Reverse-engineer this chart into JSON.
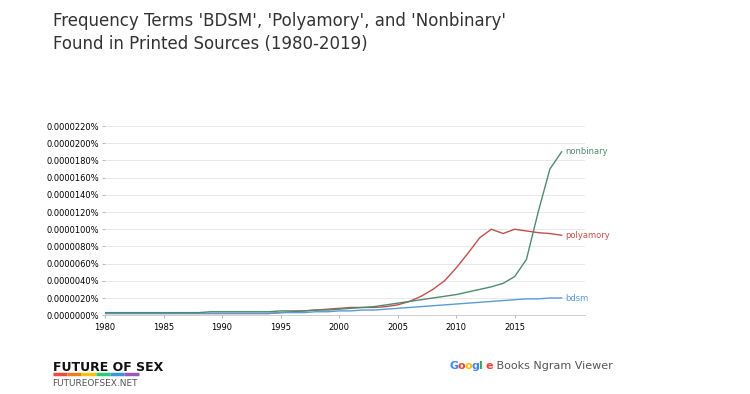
{
  "title": "Frequency Terms 'BDSM', 'Polyamory', and 'Nonbinary'\nFound in Printed Sources (1980-2019)",
  "years": [
    1980,
    1981,
    1982,
    1983,
    1984,
    1985,
    1986,
    1987,
    1988,
    1989,
    1990,
    1991,
    1992,
    1993,
    1994,
    1995,
    1996,
    1997,
    1998,
    1999,
    2000,
    2001,
    2002,
    2003,
    2004,
    2005,
    2006,
    2007,
    2008,
    2009,
    2010,
    2011,
    2012,
    2013,
    2014,
    2015,
    2016,
    2017,
    2018,
    2019
  ],
  "bdsm": [
    2e-09,
    2e-09,
    2e-09,
    2e-09,
    2e-09,
    2e-09,
    2e-09,
    2e-09,
    2e-09,
    2e-09,
    2e-09,
    2e-09,
    2e-09,
    2e-09,
    2e-09,
    3e-09,
    3e-09,
    3e-09,
    4e-09,
    4e-09,
    5e-09,
    5e-09,
    6e-09,
    6e-09,
    7e-09,
    8e-09,
    9e-09,
    1e-08,
    1.1e-08,
    1.2e-08,
    1.3e-08,
    1.4e-08,
    1.5e-08,
    1.6e-08,
    1.7e-08,
    1.8e-08,
    1.9e-08,
    1.9e-08,
    2e-08,
    2e-08
  ],
  "polyamory": [
    2e-09,
    2e-09,
    2e-09,
    2e-09,
    2e-09,
    2e-09,
    2e-09,
    2e-09,
    2e-09,
    2e-09,
    2e-09,
    2e-09,
    2e-09,
    2e-09,
    2e-09,
    3e-09,
    4e-09,
    5e-09,
    6e-09,
    7e-09,
    8e-09,
    9e-09,
    9e-09,
    9e-09,
    1e-08,
    1.2e-08,
    1.6e-08,
    2.2e-08,
    3e-08,
    4e-08,
    5.5e-08,
    7.2e-08,
    9e-08,
    1e-07,
    9.5e-08,
    1e-07,
    9.8e-08,
    9.6e-08,
    9.5e-08,
    9.3e-08
  ],
  "nonbinary": [
    3e-09,
    3e-09,
    3e-09,
    3e-09,
    3e-09,
    3e-09,
    3e-09,
    3e-09,
    3e-09,
    4e-09,
    4e-09,
    4e-09,
    4e-09,
    4e-09,
    4e-09,
    5e-09,
    5e-09,
    5e-09,
    6e-09,
    6e-09,
    7e-09,
    8e-09,
    9e-09,
    1e-08,
    1.2e-08,
    1.4e-08,
    1.6e-08,
    1.8e-08,
    2e-08,
    2.2e-08,
    2.4e-08,
    2.7e-08,
    3e-08,
    3.3e-08,
    3.7e-08,
    4.5e-08,
    6.5e-08,
    1.2e-07,
    1.7e-07,
    1.9e-07
  ],
  "bdsm_color": "#5b9bd5",
  "polyamory_color": "#c0504d",
  "nonbinary_color": "#4e8b6e",
  "background_color": "#ffffff",
  "ylim_max": 2.2e-07,
  "ytick_step": 2e-08,
  "xticks": [
    1980,
    1985,
    1990,
    1995,
    2000,
    2005,
    2010,
    2015
  ],
  "footer_left_bold": "FUTURE OF SEX",
  "footer_left_sub": "FUTUREOFSEX.NET",
  "google_letters": [
    [
      "G",
      "#4285F4"
    ],
    [
      "o",
      "#EA4335"
    ],
    [
      "o",
      "#FBBC05"
    ],
    [
      "g",
      "#4285F4"
    ],
    [
      "l",
      "#34A853"
    ],
    [
      "e",
      "#EA4335"
    ]
  ],
  "ngram_suffix": " Books Ngram Viewer",
  "rainbow_colors": [
    "#e74c3c",
    "#e67e22",
    "#f1c40f",
    "#2ecc71",
    "#3498db",
    "#9b59b6"
  ],
  "title_fontsize": 12,
  "label_fontsize": 6,
  "tick_fontsize": 6,
  "footer_fontsize": 8
}
